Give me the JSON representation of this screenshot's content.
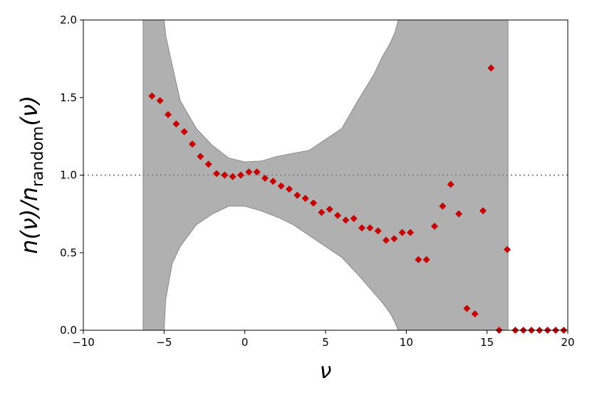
{
  "chart_data": {
    "type": "scatter",
    "xlabel": "ν",
    "ylabel": {
      "main": "n(ν)/n",
      "sub": "random",
      "end": "(ν)"
    },
    "xlim": [
      -10,
      20
    ],
    "ylim": [
      0,
      2
    ],
    "xticks": [
      {
        "value": -10,
        "label": "−10"
      },
      {
        "value": -5,
        "label": "−5"
      },
      0,
      5,
      10,
      15,
      20
    ],
    "yticks": [
      {
        "value": 0,
        "label": "0.0"
      },
      {
        "value": 0.5,
        "label": "0.5"
      },
      {
        "value": 1,
        "label": "1.0"
      },
      {
        "value": 1.5,
        "label": "1.5"
      },
      {
        "value": 2,
        "label": "2.0"
      }
    ],
    "hline": 1,
    "band": {
      "color": "#b0b0b0",
      "x": [
        -6.3,
        -5,
        -4.9,
        -4.5,
        -4,
        -3,
        -2,
        -1,
        0,
        1,
        2,
        3,
        4,
        5,
        6,
        7,
        8,
        8.5,
        9,
        9.3,
        9.5,
        16.3
      ],
      "upper": [
        2,
        2,
        1.9,
        1.71,
        1.48,
        1.3,
        1.19,
        1.11,
        1.085,
        1.09,
        1.12,
        1.14,
        1.16,
        1.23,
        1.3,
        1.48,
        1.65,
        1.76,
        1.85,
        1.92,
        2,
        2
      ],
      "lower": [
        0,
        0,
        0.2,
        0.43,
        0.54,
        0.68,
        0.75,
        0.8,
        0.8,
        0.77,
        0.73,
        0.68,
        0.61,
        0.54,
        0.47,
        0.36,
        0.24,
        0.18,
        0.11,
        0.05,
        0,
        0
      ]
    },
    "series": [
      {
        "color": "#c80000",
        "x": [
          -5.75,
          -5.25,
          -4.75,
          -4.25,
          -3.75,
          -3.25,
          -2.75,
          -2.25,
          -1.75,
          -1.25,
          -0.75,
          -0.25,
          0.25,
          0.75,
          1.25,
          1.75,
          2.25,
          2.75,
          3.25,
          3.75,
          4.25,
          4.75,
          5.25,
          5.75,
          6.25,
          6.75,
          7.25,
          7.75,
          8.25,
          8.75,
          9.25,
          9.75,
          10.25,
          10.75,
          11.25,
          11.75,
          12.25,
          12.75,
          13.25,
          13.75,
          14.25,
          14.75,
          15.25,
          15.75,
          16.25,
          16.75,
          17.25,
          17.75,
          18.25,
          18.75,
          19.25,
          19.75
        ],
        "values": [
          1.51,
          1.48,
          1.39,
          1.33,
          1.28,
          1.2,
          1.12,
          1.07,
          1.01,
          1.0,
          0.99,
          1.0,
          1.02,
          1.02,
          0.98,
          0.96,
          0.93,
          0.91,
          0.87,
          0.85,
          0.82,
          0.76,
          0.78,
          0.74,
          0.71,
          0.72,
          0.66,
          0.66,
          0.64,
          0.58,
          0.59,
          0.63,
          0.63,
          0.455,
          0.455,
          0.67,
          0.8,
          0.94,
          0.75,
          0.14,
          0.105,
          0.77,
          1.69,
          0,
          0.52,
          0,
          0,
          0,
          0,
          0,
          0,
          0
        ]
      }
    ]
  }
}
